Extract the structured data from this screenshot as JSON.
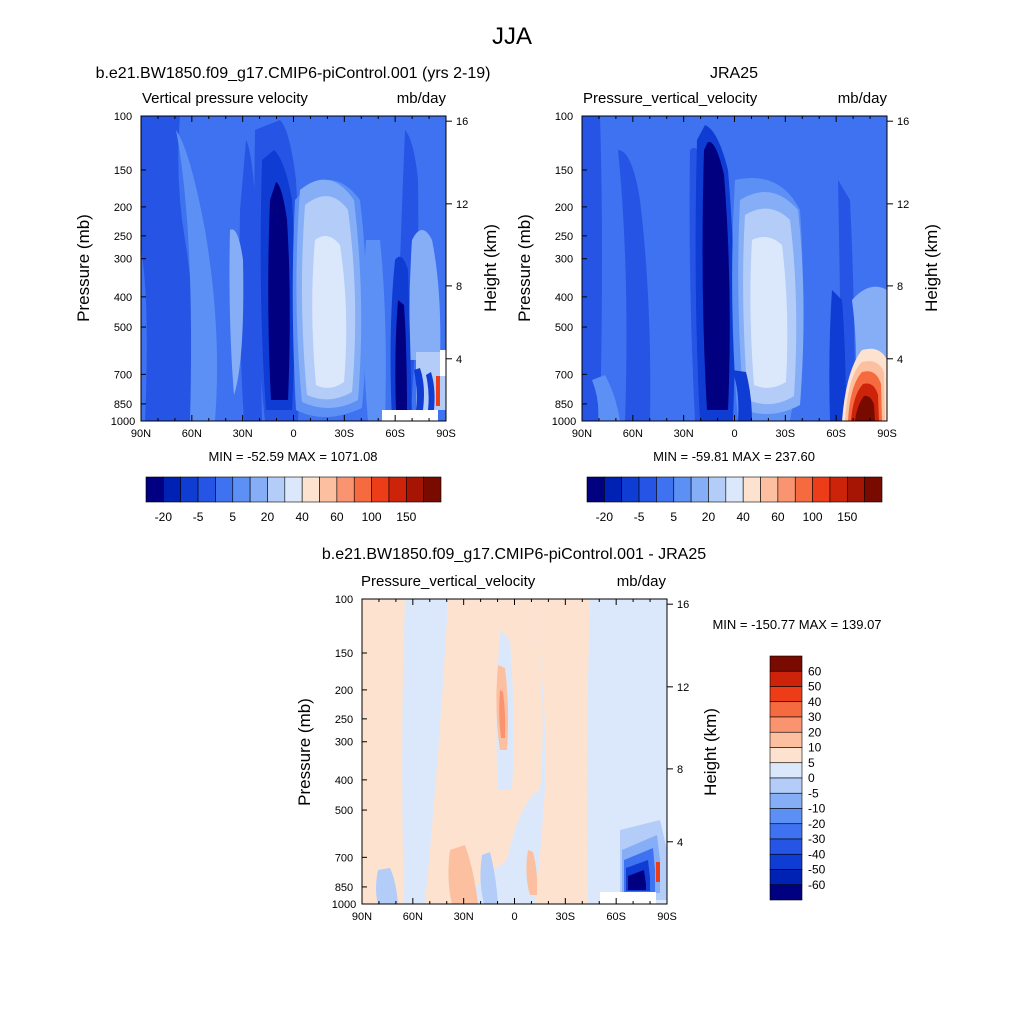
{
  "figure": {
    "title": "JJA"
  },
  "palettes": {
    "abs": [
      "#000080",
      "#0022b4",
      "#0f3cd2",
      "#2655e6",
      "#3f72f0",
      "#5c90f4",
      "#86aef6",
      "#b3cdf8",
      "#dbe8fb",
      "#fde3cf",
      "#fcbfa0",
      "#fa9470",
      "#f66a3f",
      "#ec3d18",
      "#cc230a",
      "#a61404",
      "#780a00"
    ],
    "diff": [
      "#000080",
      "#0022b4",
      "#0f3cd2",
      "#2655e6",
      "#3f72f0",
      "#5c90f4",
      "#86aef6",
      "#b3cdf8",
      "#dbe8fb",
      "#fde3cf",
      "#fcbfa0",
      "#fa9470",
      "#f66a3f",
      "#ec3d18",
      "#cc230a",
      "#780a00"
    ]
  },
  "colorbar_abs": {
    "labels": [
      "-20",
      "-5",
      "5",
      "20",
      "40",
      "60",
      "100",
      "150"
    ]
  },
  "colorbar_diff": {
    "labels": [
      "60",
      "50",
      "40",
      "30",
      "20",
      "10",
      "5",
      "0",
      "-5",
      "-10",
      "-20",
      "-30",
      "-40",
      "-50",
      "-60"
    ]
  },
  "axes": {
    "pressure_ticks": [
      "100",
      "150",
      "200",
      "250",
      "300",
      "400",
      "500",
      "700",
      "850",
      "1000"
    ],
    "lat_ticks": [
      "90N",
      "60N",
      "30N",
      "0",
      "30S",
      "60S",
      "90S"
    ],
    "height_ticks": [
      "16",
      "12",
      "8",
      "4"
    ],
    "ylabel": "Pressure (mb)",
    "ylabel_right": "Height (km)"
  },
  "chart_data": [
    {
      "type": "heatmap",
      "title": "b.e21.BW1850.f09_g17.CMIP6-piControl.001 (yrs 2-19)",
      "variable": "Vertical pressure velocity",
      "units": "mb/day",
      "stats": "MIN = -52.59  MAX = 1071.08",
      "min": -52.59,
      "max": 1071.08,
      "xlabel": "",
      "ylabel": "Pressure (mb)",
      "ylabel_right": "Height (km)",
      "x_range": [
        "90N",
        "90S"
      ],
      "y_range": [
        100,
        1000
      ],
      "colorbar_labels": [
        "-20",
        "-5",
        "5",
        "20",
        "40",
        "60",
        "100",
        "150"
      ]
    },
    {
      "type": "heatmap",
      "title": "JRA25",
      "variable": "Pressure_vertical_velocity",
      "units": "mb/day",
      "stats": "MIN = -59.81  MAX = 237.60",
      "min": -59.81,
      "max": 237.6,
      "xlabel": "",
      "ylabel": "Pressure (mb)",
      "ylabel_right": "Height (km)",
      "x_range": [
        "90N",
        "90S"
      ],
      "y_range": [
        100,
        1000
      ],
      "colorbar_labels": [
        "-20",
        "-5",
        "5",
        "20",
        "40",
        "60",
        "100",
        "150"
      ]
    },
    {
      "type": "heatmap",
      "title": "b.e21.BW1850.f09_g17.CMIP6-piControl.001 - JRA25",
      "variable": "Pressure_vertical_velocity",
      "units": "mb/day",
      "stats": "MIN = -150.77  MAX = 139.07",
      "min": -150.77,
      "max": 139.07,
      "xlabel": "",
      "ylabel": "Pressure (mb)",
      "ylabel_right": "Height (km)",
      "x_range": [
        "90N",
        "90S"
      ],
      "y_range": [
        100,
        1000
      ],
      "colorbar_labels": [
        "60",
        "50",
        "40",
        "30",
        "20",
        "10",
        "5",
        "0",
        "-5",
        "-10",
        "-20",
        "-30",
        "-40",
        "-50",
        "-60"
      ]
    }
  ]
}
